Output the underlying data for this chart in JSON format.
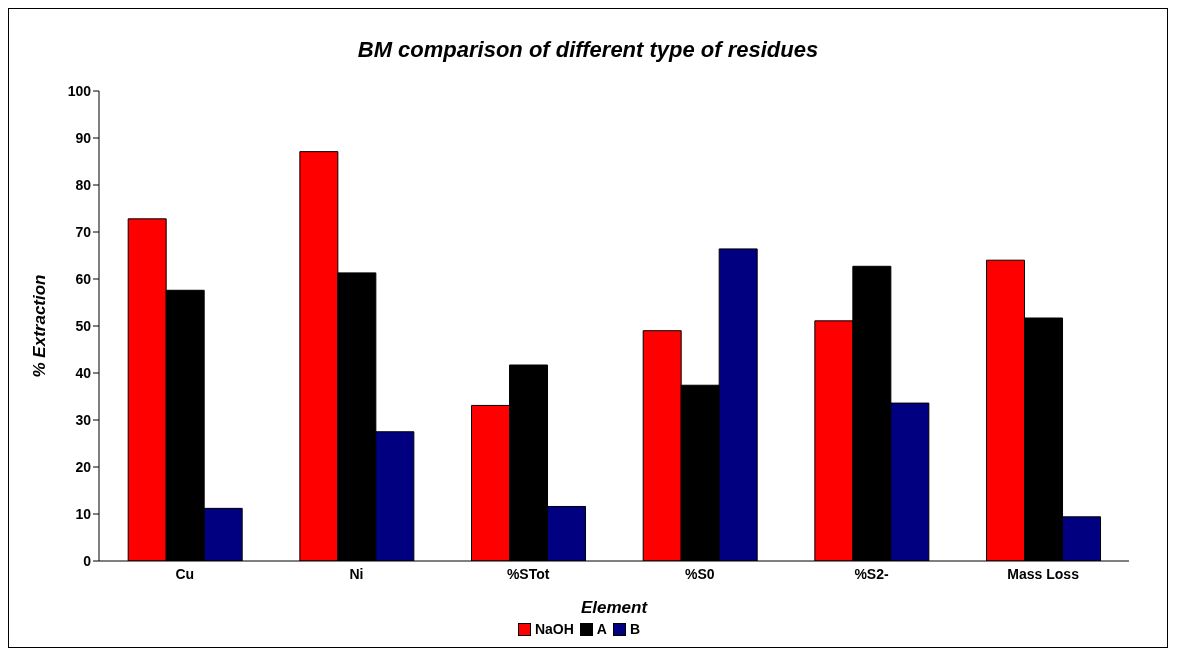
{
  "chart_data": {
    "type": "bar",
    "title": "BM comparison of different type of residues",
    "xlabel": "Element",
    "ylabel": "% Extraction",
    "categories": [
      "Cu",
      "Ni",
      "%STot",
      "%S0",
      "%S2-",
      "Mass Loss"
    ],
    "series": [
      {
        "name": "NaOH",
        "color": "#ff0000",
        "values": [
          72.8,
          87.1,
          33.1,
          49.0,
          51.1,
          64.0
        ]
      },
      {
        "name": "A",
        "color": "#000000",
        "values": [
          57.6,
          61.3,
          41.7,
          37.4,
          62.7,
          51.7
        ]
      },
      {
        "name": "B",
        "color": "#000080",
        "values": [
          11.2,
          27.5,
          11.6,
          66.4,
          33.6,
          9.4
        ]
      }
    ],
    "ylim": [
      0,
      100
    ],
    "yticks": [
      0,
      10,
      20,
      30,
      40,
      50,
      60,
      70,
      80,
      90,
      100
    ],
    "grid": false,
    "legend": "bottom"
  }
}
